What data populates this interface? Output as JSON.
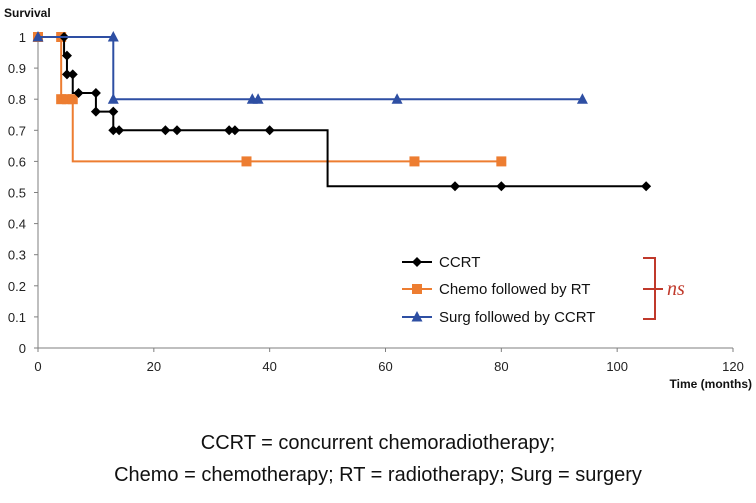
{
  "chart_data": {
    "type": "line",
    "subtype": "kaplan-meier",
    "ylabel": "Survival",
    "xlabel": "Time (months)",
    "xlim": [
      0,
      120
    ],
    "ylim": [
      0,
      1
    ],
    "xticks": [
      0,
      20,
      40,
      60,
      80,
      100,
      120
    ],
    "yticks": [
      0,
      0.1,
      0.2,
      0.3,
      0.4,
      0.5,
      0.6,
      0.7,
      0.8,
      0.9,
      1
    ],
    "grid": false,
    "legend_position": "bottom-right",
    "series": [
      {
        "name": "CCRT",
        "color": "#000000",
        "marker": "diamond",
        "steps": [
          [
            0,
            1
          ],
          [
            4.5,
            0.94
          ],
          [
            5,
            0.88
          ],
          [
            6,
            0.82
          ],
          [
            10,
            0.76
          ],
          [
            13,
            0.7
          ],
          [
            50,
            0.52
          ],
          [
            105,
            0.52
          ]
        ],
        "markers": [
          [
            4.5,
            1
          ],
          [
            5,
            0.94
          ],
          [
            5,
            0.88
          ],
          [
            6,
            0.88
          ],
          [
            7,
            0.82
          ],
          [
            10,
            0.82
          ],
          [
            10,
            0.76
          ],
          [
            13,
            0.76
          ],
          [
            13,
            0.7
          ],
          [
            14,
            0.7
          ],
          [
            22,
            0.7
          ],
          [
            24,
            0.7
          ],
          [
            33,
            0.7
          ],
          [
            34,
            0.7
          ],
          [
            40,
            0.7
          ],
          [
            72,
            0.52
          ],
          [
            80,
            0.52
          ],
          [
            105,
            0.52
          ]
        ]
      },
      {
        "name": "Chemo followed by RT",
        "color": "#ed7d31",
        "marker": "square",
        "steps": [
          [
            0,
            1
          ],
          [
            4,
            0.8
          ],
          [
            6,
            0.6
          ],
          [
            80,
            0.6
          ]
        ],
        "markers": [
          [
            0,
            1
          ],
          [
            4,
            1
          ],
          [
            4,
            0.8
          ],
          [
            5,
            0.8
          ],
          [
            6,
            0.8
          ],
          [
            36,
            0.6
          ],
          [
            65,
            0.6
          ],
          [
            80,
            0.6
          ]
        ]
      },
      {
        "name": "Surg followed by CCRT",
        "color": "#2e4fa3",
        "marker": "triangle",
        "steps": [
          [
            0,
            1
          ],
          [
            13,
            0.8
          ],
          [
            94,
            0.8
          ]
        ],
        "markers": [
          [
            0,
            1
          ],
          [
            13,
            1
          ],
          [
            13,
            0.8
          ],
          [
            37,
            0.8
          ],
          [
            38,
            0.8
          ],
          [
            62,
            0.8
          ],
          [
            94,
            0.8
          ]
        ]
      }
    ],
    "annotation": {
      "text": "ns",
      "color": "#c0392b",
      "meaning_bracket_groups": [
        "CCRT",
        "Chemo followed by RT",
        "Surg followed by CCRT"
      ]
    }
  },
  "caption": {
    "line1": "CCRT = concurrent chemoradiotherapy;",
    "line2": "Chemo = chemotherapy; RT = radiotherapy; Surg = surgery"
  }
}
